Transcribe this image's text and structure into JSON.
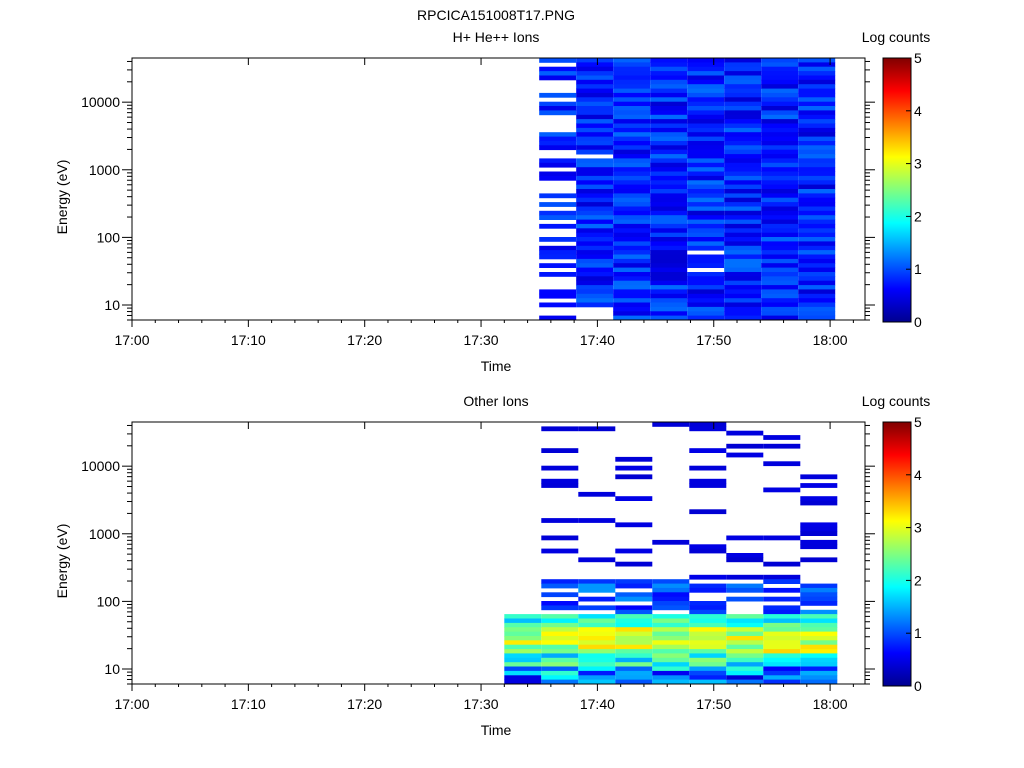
{
  "figure_title": "RPCICA151008T17.PNG",
  "chart_data": [
    {
      "type": "heatmap",
      "title": "H+ He++ Ions",
      "xlabel": "Time",
      "ylabel": "Energy (eV)",
      "colorbar_label": "Log counts",
      "x_ticks": [
        "17:00",
        "17:10",
        "17:20",
        "17:30",
        "17:40",
        "17:50",
        "18:00"
      ],
      "y_ticks": [
        "10",
        "100",
        "1000",
        "10000"
      ],
      "y_scale": "log",
      "ylim": [
        6,
        45000
      ],
      "xlim": [
        "17:00",
        "18:03"
      ],
      "colorbar_ticks": [
        "0",
        "1",
        "2",
        "3",
        "4",
        "5"
      ],
      "zlim": [
        0,
        5
      ],
      "data_time_range": [
        "17:35",
        "18:01"
      ],
      "approx_log_counts_range": [
        0,
        1.2
      ]
    },
    {
      "type": "heatmap",
      "title": "Other Ions",
      "xlabel": "Time",
      "ylabel": "Energy (eV)",
      "colorbar_label": "Log counts",
      "x_ticks": [
        "17:00",
        "17:10",
        "17:20",
        "17:30",
        "17:40",
        "17:50",
        "18:00"
      ],
      "y_ticks": [
        "10",
        "100",
        "1000",
        "10000"
      ],
      "y_scale": "log",
      "ylim": [
        6,
        45000
      ],
      "xlim": [
        "17:00",
        "18:03"
      ],
      "colorbar_ticks": [
        "0",
        "1",
        "2",
        "3",
        "4",
        "5"
      ],
      "zlim": [
        0,
        5
      ],
      "data_time_range": [
        "17:32",
        "18:01"
      ],
      "approx_log_counts_range": [
        0,
        3.4
      ]
    }
  ]
}
